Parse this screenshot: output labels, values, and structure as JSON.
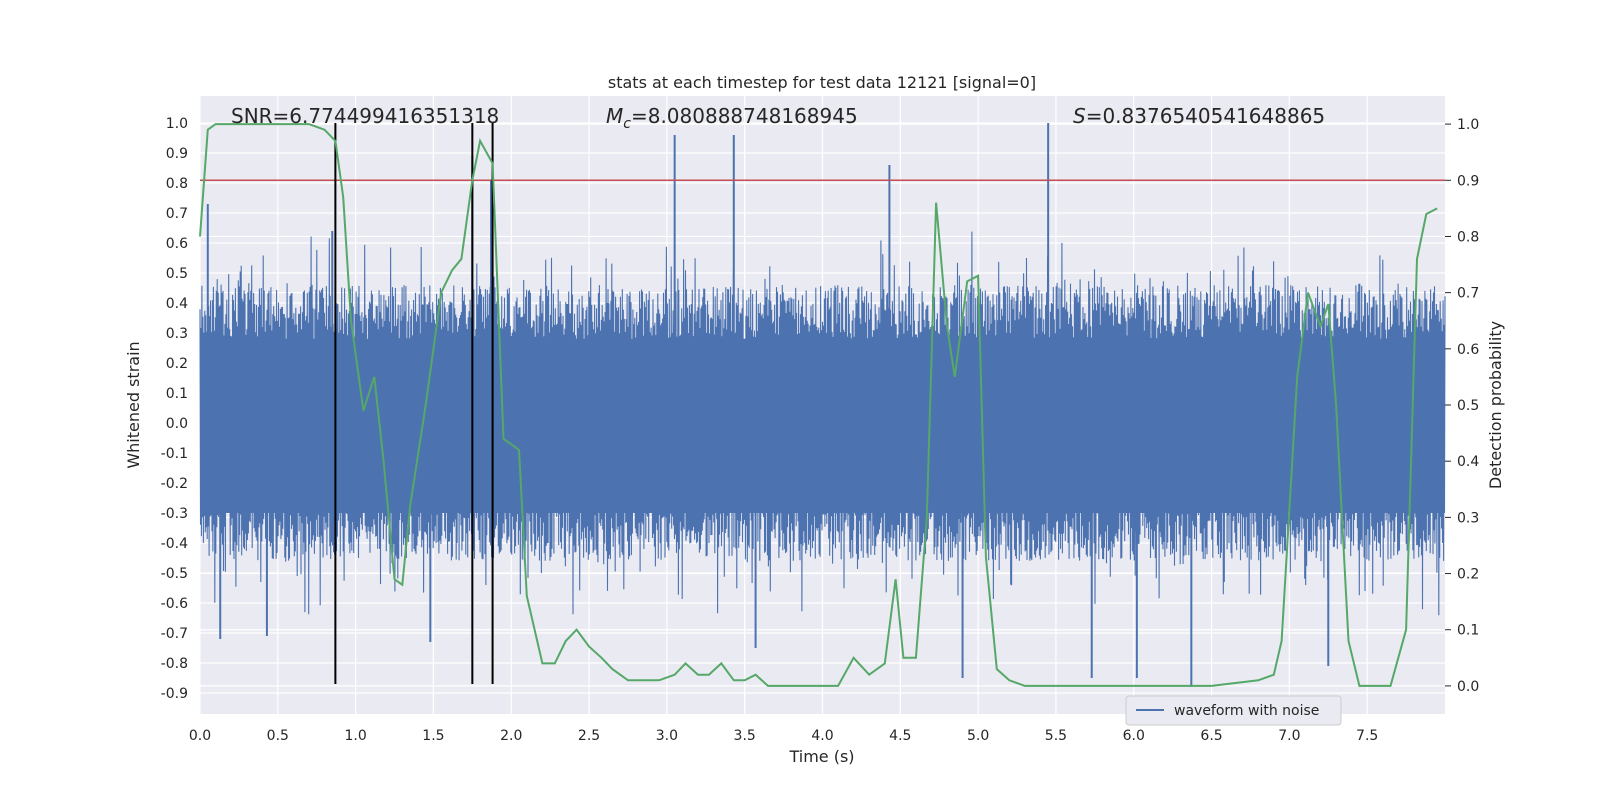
{
  "chart_data": {
    "type": "line",
    "title": "stats at each timestep for test data 12121 [signal=0]",
    "xlabel": "Time (s)",
    "ylabel": "Whitened strain",
    "y2label": "Detection probability",
    "xlim": [
      0,
      8
    ],
    "ylim": [
      -0.97,
      1.09
    ],
    "y2lim": [
      -0.05,
      1.05
    ],
    "xticks": [
      "0.0",
      "0.5",
      "1.0",
      "1.5",
      "2.0",
      "2.5",
      "3.0",
      "3.5",
      "4.0",
      "4.5",
      "5.0",
      "5.5",
      "6.0",
      "6.5",
      "7.0",
      "7.5"
    ],
    "yticks": [
      "1.0",
      "0.9",
      "0.8",
      "0.7",
      "0.6",
      "0.5",
      "0.4",
      "0.3",
      "0.2",
      "0.1",
      "0.0",
      "-0.1",
      "-0.2",
      "-0.3",
      "-0.4",
      "-0.5",
      "-0.6",
      "-0.7",
      "-0.8",
      "-0.9"
    ],
    "y2ticks": [
      "1.0",
      "0.9",
      "0.8",
      "0.7",
      "0.6",
      "0.5",
      "0.4",
      "0.3",
      "0.2",
      "0.1",
      "0.0"
    ],
    "grid": true,
    "legend": {
      "placement": "lower-right",
      "entries": [
        "waveform with noise"
      ]
    },
    "annotations": {
      "snr": "SNR=6.774499416351318",
      "mc_symbol": "M",
      "mc_sub": "c",
      "mc_value": "=8.080888748168945",
      "s_symbol": "S",
      "s_value": "=0.8376540541648865"
    },
    "threshold_line": {
      "y2": 0.9,
      "color": "#c44e52"
    },
    "vertical_lines": [
      0.87,
      1.75,
      1.88
    ],
    "waveform": {
      "name": "waveform with noise",
      "color": "#4c72b0",
      "envelope": "noise",
      "peaks": [
        {
          "x": 0.05,
          "y": 0.73
        },
        {
          "x": 0.13,
          "y": -0.72
        },
        {
          "x": 0.43,
          "y": -0.71
        },
        {
          "x": 0.85,
          "y": 0.64
        },
        {
          "x": 1.48,
          "y": -0.73
        },
        {
          "x": 1.75,
          "y": 0.89
        },
        {
          "x": 1.87,
          "y": 0.81
        },
        {
          "x": 3.05,
          "y": 0.96
        },
        {
          "x": 3.43,
          "y": 0.96
        },
        {
          "x": 3.57,
          "y": -0.75
        },
        {
          "x": 4.43,
          "y": 0.86
        },
        {
          "x": 4.9,
          "y": -0.85
        },
        {
          "x": 5.45,
          "y": 1.0
        },
        {
          "x": 5.73,
          "y": -0.85
        },
        {
          "x": 6.02,
          "y": -0.85
        },
        {
          "x": 6.37,
          "y": -0.88
        },
        {
          "x": 7.25,
          "y": -0.81
        }
      ]
    },
    "probability": {
      "color": "#55a868",
      "x": [
        0.0,
        0.05,
        0.1,
        0.3,
        0.5,
        0.7,
        0.8,
        0.87,
        0.92,
        0.97,
        1.05,
        1.12,
        1.18,
        1.25,
        1.3,
        1.35,
        1.45,
        1.55,
        1.62,
        1.68,
        1.75,
        1.8,
        1.88,
        1.95,
        2.05,
        2.1,
        2.2,
        2.28,
        2.35,
        2.42,
        2.5,
        2.58,
        2.65,
        2.75,
        2.85,
        2.95,
        3.05,
        3.12,
        3.2,
        3.27,
        3.35,
        3.43,
        3.5,
        3.57,
        3.65,
        3.7,
        3.8,
        3.9,
        4.0,
        4.1,
        4.2,
        4.3,
        4.4,
        4.47,
        4.52,
        4.6,
        4.67,
        4.73,
        4.8,
        4.85,
        4.93,
        5.0,
        5.05,
        5.12,
        5.2,
        5.3,
        5.4,
        5.6,
        5.8,
        6.0,
        6.5,
        6.8,
        6.9,
        6.95,
        7.05,
        7.12,
        7.2,
        7.25,
        7.3,
        7.38,
        7.45,
        7.55,
        7.65,
        7.75,
        7.82,
        7.88,
        7.95
      ],
      "y": [
        0.8,
        0.99,
        1.0,
        1.0,
        1.0,
        1.0,
        0.99,
        0.97,
        0.87,
        0.65,
        0.49,
        0.55,
        0.4,
        0.19,
        0.18,
        0.32,
        0.5,
        0.7,
        0.74,
        0.76,
        0.9,
        0.97,
        0.93,
        0.44,
        0.42,
        0.16,
        0.04,
        0.04,
        0.08,
        0.1,
        0.07,
        0.05,
        0.03,
        0.01,
        0.01,
        0.01,
        0.02,
        0.04,
        0.02,
        0.02,
        0.04,
        0.01,
        0.01,
        0.02,
        0.0,
        0.0,
        0.0,
        0.0,
        0.0,
        0.0,
        0.05,
        0.02,
        0.04,
        0.19,
        0.05,
        0.05,
        0.3,
        0.86,
        0.64,
        0.55,
        0.72,
        0.73,
        0.23,
        0.03,
        0.01,
        0.0,
        0.0,
        0.0,
        0.0,
        0.0,
        0.0,
        0.01,
        0.02,
        0.08,
        0.55,
        0.7,
        0.64,
        0.68,
        0.5,
        0.08,
        0.0,
        0.0,
        0.0,
        0.1,
        0.76,
        0.84,
        0.85
      ]
    }
  }
}
